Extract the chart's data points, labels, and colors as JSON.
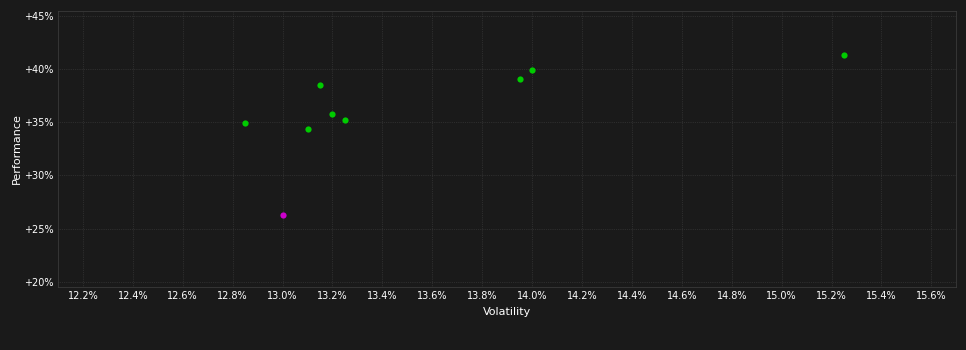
{
  "background_color": "#1a1a1a",
  "plot_bg_color": "#1a1a1a",
  "grid_color": "#404040",
  "text_color": "#ffffff",
  "xlabel": "Volatility",
  "ylabel": "Performance",
  "xlim": [
    0.121,
    0.157
  ],
  "ylim": [
    0.195,
    0.455
  ],
  "xticks": [
    0.122,
    0.124,
    0.126,
    0.128,
    0.13,
    0.132,
    0.134,
    0.136,
    0.138,
    0.14,
    0.142,
    0.144,
    0.146,
    0.148,
    0.15,
    0.152,
    0.154,
    0.156
  ],
  "yticks": [
    0.2,
    0.25,
    0.3,
    0.35,
    0.4,
    0.45
  ],
  "green_points": [
    [
      0.1285,
      0.349
    ],
    [
      0.1315,
      0.385
    ],
    [
      0.132,
      0.358
    ],
    [
      0.1325,
      0.352
    ],
    [
      0.131,
      0.344
    ],
    [
      0.14,
      0.399
    ],
    [
      0.1395,
      0.391
    ],
    [
      0.1525,
      0.413
    ]
  ],
  "magenta_points": [
    [
      0.13,
      0.263
    ]
  ],
  "green_color": "#00cc00",
  "magenta_color": "#cc00cc",
  "marker_size": 20
}
